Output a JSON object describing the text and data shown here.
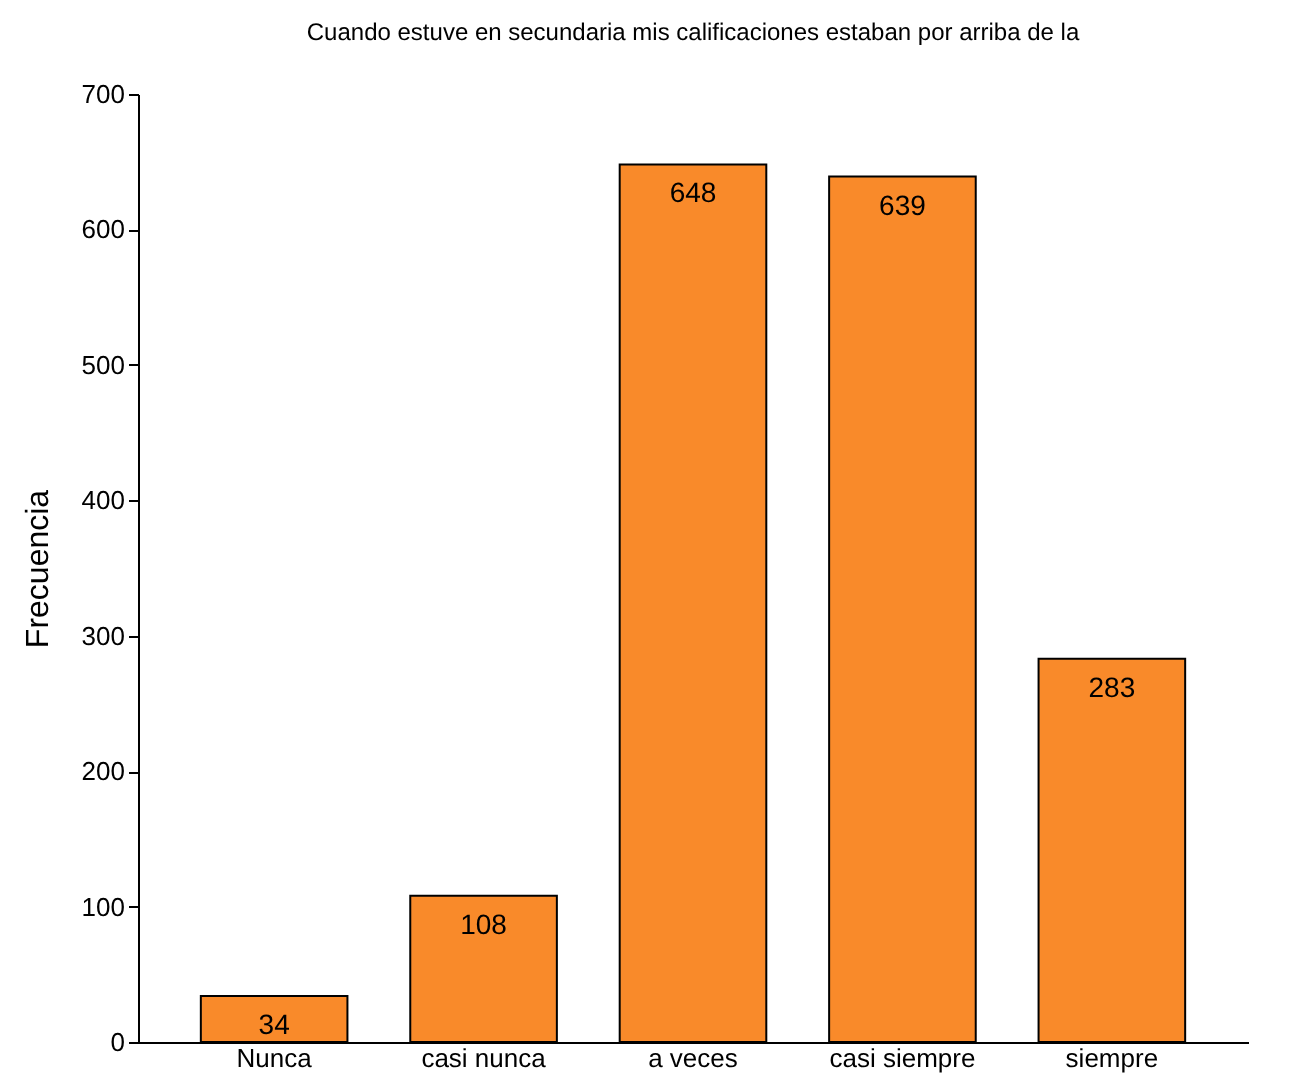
{
  "chart_data": {
    "type": "bar",
    "title": "Cuando estuve en secundaria mis calificaciones estaban por arriba de la",
    "ylabel": "Frecuencia",
    "categories": [
      "Nunca",
      "casi nunca",
      "a veces",
      "casi siempre",
      "siempre"
    ],
    "values": [
      34,
      108,
      648,
      639,
      283
    ],
    "color": "#f98a2a",
    "ylim": [
      0,
      700
    ],
    "yticks": [
      0,
      100,
      200,
      300,
      400,
      500,
      600,
      700
    ],
    "data_labels": true
  }
}
